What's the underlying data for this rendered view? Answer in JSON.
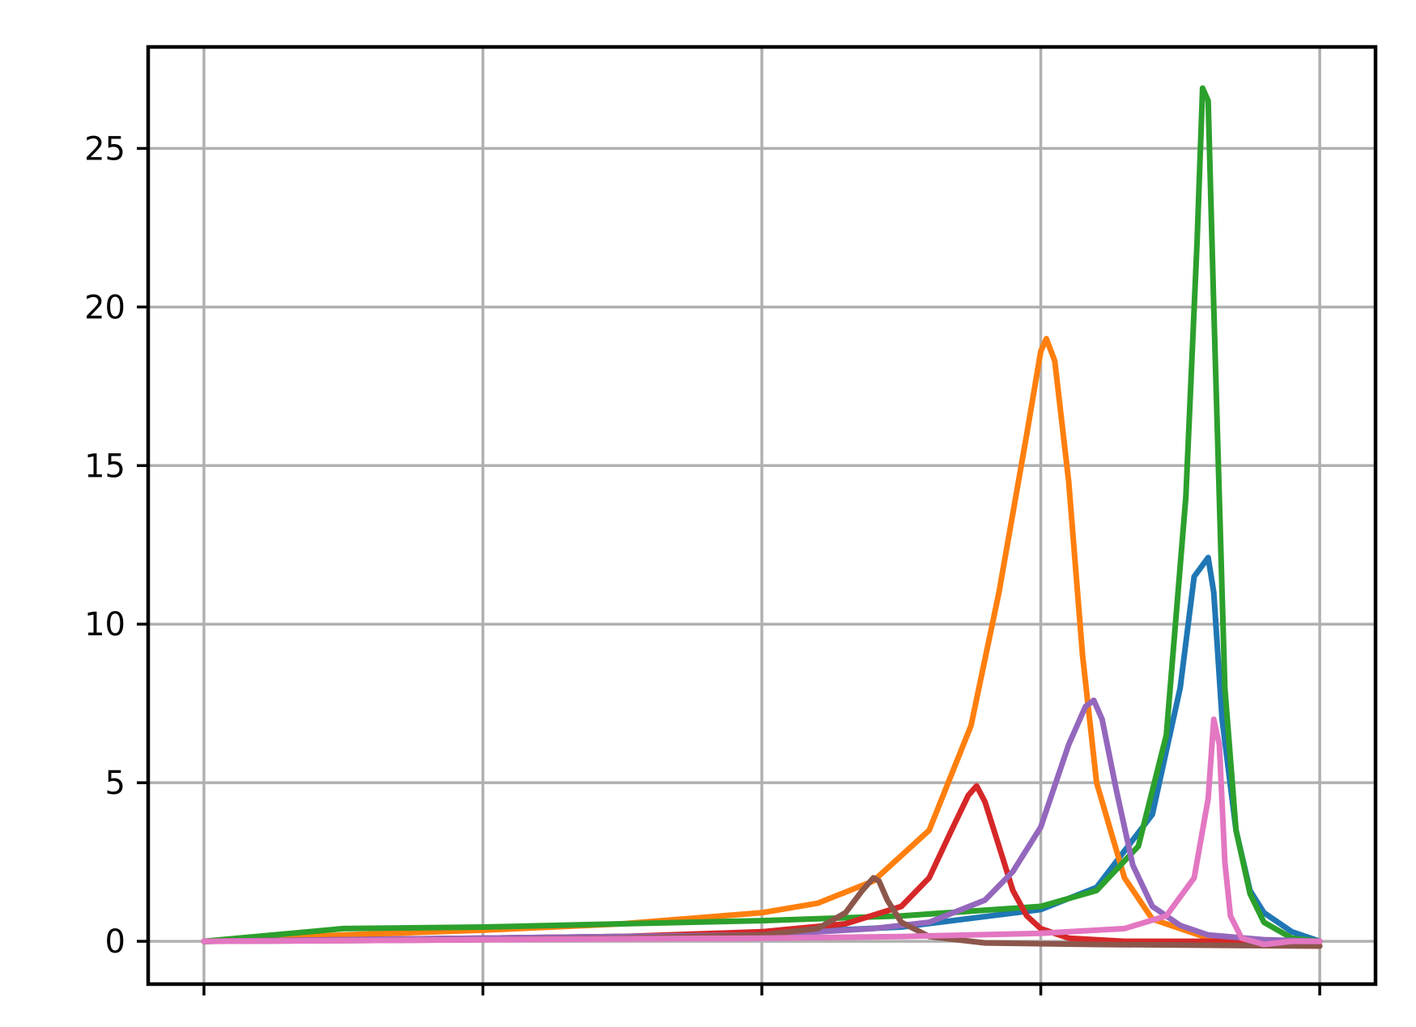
{
  "chart_data": {
    "type": "line",
    "title": "",
    "xlabel": "",
    "ylabel": "",
    "xlim": [
      -0.2,
      4.2
    ],
    "ylim": [
      -1.35,
      28.2
    ],
    "x_ticks": [
      0,
      1,
      2,
      3,
      4
    ],
    "y_ticks": [
      0,
      5,
      10,
      15,
      20,
      25
    ],
    "y_tick_labels": [
      "0",
      "5",
      "10",
      "15",
      "20",
      "25"
    ],
    "grid": true,
    "legend": "none",
    "colors": [
      "#1f77b4",
      "#ff7f0e",
      "#2ca02c",
      "#d62728",
      "#9467bd",
      "#8c564b",
      "#e377c2"
    ],
    "series": [
      {
        "color": "#1f77b4",
        "x": [
          0,
          0.5,
          1,
          1.5,
          2,
          2.5,
          3,
          3.2,
          3.4,
          3.5,
          3.55,
          3.6,
          3.62,
          3.65,
          3.7,
          3.75,
          3.8,
          3.9,
          4
        ],
        "values": [
          0,
          0.05,
          0.1,
          0.15,
          0.25,
          0.45,
          1.0,
          1.7,
          4.0,
          8.0,
          11.5,
          12.1,
          11.0,
          7.0,
          3.5,
          1.6,
          0.9,
          0.3,
          0
        ]
      },
      {
        "color": "#ff7f0e",
        "x": [
          0,
          0.5,
          1,
          1.5,
          2,
          2.2,
          2.4,
          2.6,
          2.75,
          2.85,
          2.95,
          3.0,
          3.02,
          3.05,
          3.1,
          3.15,
          3.2,
          3.3,
          3.4,
          3.6,
          3.8,
          4
        ],
        "values": [
          0,
          0.2,
          0.35,
          0.55,
          0.9,
          1.2,
          1.9,
          3.5,
          6.8,
          11.0,
          16.0,
          18.6,
          19.0,
          18.3,
          14.5,
          9.0,
          5.0,
          2.0,
          0.7,
          0.1,
          0,
          0
        ]
      },
      {
        "color": "#2ca02c",
        "x": [
          0,
          0.5,
          1,
          1.5,
          2,
          2.5,
          3,
          3.2,
          3.35,
          3.45,
          3.52,
          3.56,
          3.58,
          3.6,
          3.62,
          3.66,
          3.7,
          3.75,
          3.8,
          3.9,
          4
        ],
        "values": [
          0,
          0.4,
          0.45,
          0.55,
          0.65,
          0.8,
          1.1,
          1.6,
          3.0,
          6.5,
          14.0,
          22.0,
          26.9,
          26.5,
          20.0,
          8.0,
          3.5,
          1.5,
          0.6,
          0.1,
          0
        ]
      },
      {
        "color": "#d62728",
        "x": [
          0,
          0.5,
          1,
          1.5,
          2,
          2.3,
          2.5,
          2.6,
          2.68,
          2.74,
          2.77,
          2.8,
          2.85,
          2.9,
          2.95,
          3.0,
          3.1,
          3.3,
          3.6,
          4
        ],
        "values": [
          0,
          0.05,
          0.1,
          0.15,
          0.3,
          0.55,
          1.1,
          2.0,
          3.5,
          4.6,
          4.9,
          4.4,
          3.0,
          1.6,
          0.8,
          0.4,
          0.1,
          0,
          0,
          0
        ]
      },
      {
        "color": "#9467bd",
        "x": [
          0,
          0.5,
          1,
          1.5,
          2,
          2.4,
          2.6,
          2.8,
          2.9,
          3.0,
          3.1,
          3.16,
          3.19,
          3.22,
          3.27,
          3.33,
          3.4,
          3.5,
          3.6,
          3.8,
          4
        ],
        "values": [
          0,
          0.05,
          0.1,
          0.15,
          0.2,
          0.4,
          0.6,
          1.3,
          2.2,
          3.6,
          6.2,
          7.4,
          7.6,
          7.0,
          4.8,
          2.4,
          1.1,
          0.5,
          0.2,
          0.05,
          0
        ]
      },
      {
        "color": "#8c564b",
        "x": [
          0,
          0.5,
          1,
          1.5,
          2,
          2.2,
          2.3,
          2.36,
          2.4,
          2.42,
          2.45,
          2.5,
          2.6,
          2.8,
          3.2,
          4
        ],
        "values": [
          0,
          0.02,
          0.05,
          0.1,
          0.2,
          0.4,
          0.9,
          1.6,
          2.0,
          1.9,
          1.3,
          0.6,
          0.15,
          -0.05,
          -0.1,
          -0.15
        ]
      },
      {
        "color": "#e377c2",
        "x": [
          0,
          0.5,
          1,
          1.5,
          2,
          2.5,
          3,
          3.3,
          3.45,
          3.55,
          3.6,
          3.62,
          3.64,
          3.66,
          3.68,
          3.72,
          3.8,
          3.9,
          4
        ],
        "values": [
          0,
          0.02,
          0.05,
          0.08,
          0.1,
          0.15,
          0.25,
          0.4,
          0.8,
          2.0,
          4.5,
          7.0,
          6.2,
          2.5,
          0.8,
          0.1,
          -0.1,
          0,
          0
        ]
      }
    ]
  }
}
